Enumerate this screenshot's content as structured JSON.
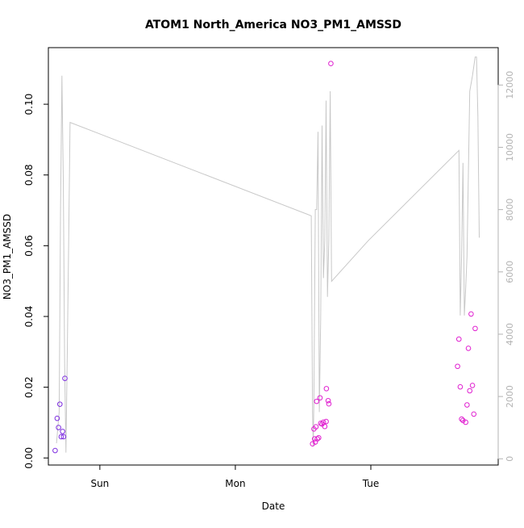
{
  "chart_data": {
    "type": "scatter",
    "title": "ATOM1 North_America NO3_PM1_AMSSD",
    "xlabel": "Date",
    "ylabel": "NO3_PM1_AMSSD",
    "x_unit": "days",
    "xlim": [
      -0.38,
      2.94
    ],
    "x_ticks": [
      {
        "value": 0,
        "label": "Sun"
      },
      {
        "value": 1,
        "label": "Mon"
      },
      {
        "value": 2,
        "label": "Tue"
      }
    ],
    "ylim": [
      -0.002,
      0.116
    ],
    "y_ticks": [
      0.0,
      0.02,
      0.04,
      0.06,
      0.08,
      0.1
    ],
    "y_tick_labels": [
      "0.00",
      "0.02",
      "0.04",
      "0.06",
      "0.08",
      "0.10"
    ],
    "y2lim": [
      -200,
      13200
    ],
    "y2_ticks": [
      0,
      2000,
      4000,
      6000,
      8000,
      10000,
      12000
    ],
    "y2_tick_labels": [
      "0",
      "2000",
      "4000",
      "6000",
      "8000",
      "10000",
      "12000"
    ],
    "colors": {
      "axis": "#000000",
      "secondary_axis": "#b3b3b3",
      "altitude_line": "#c8c8c8",
      "early_points": "#7f2fe0",
      "late_points": "#e020d0"
    },
    "altitude_line": [
      [
        -0.32,
        500
      ],
      [
        -0.3,
        1500
      ],
      [
        -0.29,
        8000
      ],
      [
        -0.28,
        12300
      ],
      [
        -0.27,
        9000
      ],
      [
        -0.26,
        3000
      ],
      [
        -0.25,
        200
      ],
      [
        -0.24,
        3500
      ],
      [
        -0.23,
        7000
      ],
      [
        -0.22,
        10800
      ],
      [
        1.56,
        7800
      ],
      [
        1.57,
        1500
      ],
      [
        1.575,
        400
      ],
      [
        1.58,
        2000
      ],
      [
        1.59,
        8000
      ],
      [
        1.6,
        8000
      ],
      [
        1.61,
        10500
      ],
      [
        1.62,
        1500
      ],
      [
        1.63,
        4500
      ],
      [
        1.64,
        10700
      ],
      [
        1.65,
        5800
      ],
      [
        1.66,
        7000
      ],
      [
        1.67,
        11500
      ],
      [
        1.68,
        5200
      ],
      [
        1.69,
        7000
      ],
      [
        1.7,
        11800
      ],
      [
        1.71,
        5700
      ],
      [
        1.98,
        7000
      ],
      [
        2.65,
        9900
      ],
      [
        2.66,
        4600
      ],
      [
        2.67,
        6500
      ],
      [
        2.68,
        9500
      ],
      [
        2.69,
        4600
      ],
      [
        2.7,
        5500
      ],
      [
        2.71,
        6500
      ],
      [
        2.73,
        11800
      ],
      [
        2.75,
        12300
      ],
      [
        2.77,
        12900
      ],
      [
        2.78,
        12900
      ],
      [
        2.79,
        11000
      ],
      [
        2.8,
        7100
      ]
    ],
    "series": [
      {
        "values": [
          [
            -0.33,
            0.0021
          ],
          [
            -0.315,
            0.0112
          ],
          [
            -0.305,
            0.0086
          ],
          [
            -0.295,
            0.0152
          ],
          [
            -0.285,
            0.006
          ],
          [
            -0.275,
            0.0075
          ],
          [
            -0.268,
            0.006
          ],
          [
            -0.258,
            0.0225
          ]
        ]
      },
      {
        "values": [
          [
            1.57,
            0.004
          ],
          [
            1.58,
            0.0082
          ],
          [
            1.585,
            0.0054
          ],
          [
            1.59,
            0.0045
          ],
          [
            1.595,
            0.0088
          ],
          [
            1.6,
            0.016
          ],
          [
            1.605,
            0.0054
          ],
          [
            1.615,
            0.0057
          ],
          [
            1.625,
            0.017
          ],
          [
            1.63,
            0.0098
          ],
          [
            1.64,
            0.0096
          ],
          [
            1.65,
            0.0101
          ],
          [
            1.66,
            0.0089
          ],
          [
            1.67,
            0.0103
          ],
          [
            1.672,
            0.0196
          ],
          [
            1.685,
            0.0162
          ],
          [
            1.69,
            0.0153
          ],
          [
            1.705,
            0.1115
          ],
          [
            2.64,
            0.0259
          ],
          [
            2.65,
            0.0336
          ],
          [
            2.66,
            0.0201
          ],
          [
            2.67,
            0.011
          ],
          [
            2.68,
            0.0106
          ],
          [
            2.7,
            0.0101
          ],
          [
            2.71,
            0.015
          ],
          [
            2.72,
            0.031
          ],
          [
            2.73,
            0.019
          ],
          [
            2.74,
            0.0407
          ],
          [
            2.75,
            0.0205
          ],
          [
            2.76,
            0.0124
          ],
          [
            2.77,
            0.0366
          ]
        ]
      }
    ]
  }
}
